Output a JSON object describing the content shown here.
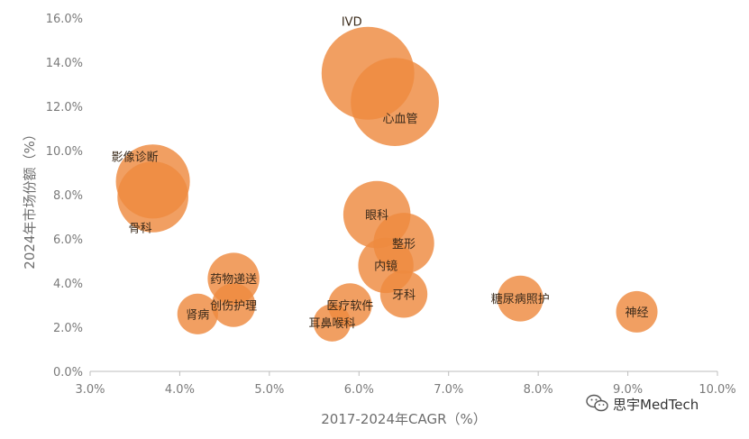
{
  "chart_data": {
    "type": "scatter",
    "subtype": "bubble",
    "title": "",
    "xlabel": "2017-2024年CAGR（%）",
    "ylabel": "2024年市场份额（%）",
    "xlim": [
      3.0,
      10.0
    ],
    "ylim": [
      0.0,
      16.0
    ],
    "x_ticks": [
      "3.0%",
      "4.0%",
      "5.0%",
      "6.0%",
      "7.0%",
      "8.0%",
      "9.0%",
      "10.0%"
    ],
    "y_ticks": [
      "0.0%",
      "2.0%",
      "4.0%",
      "6.0%",
      "8.0%",
      "10.0%",
      "12.0%",
      "14.0%",
      "16.0%"
    ],
    "grid": false,
    "legend": "none",
    "bubble_color": "#EE8A3F",
    "points": [
      {
        "label": "IVD",
        "x": 6.1,
        "y": 13.5,
        "size": 13.5
      },
      {
        "label": "心血管",
        "x": 6.4,
        "y": 12.2,
        "size": 12.2
      },
      {
        "label": "影像诊断",
        "x": 3.7,
        "y": 8.6,
        "size": 8.6
      },
      {
        "label": "骨科",
        "x": 3.7,
        "y": 7.9,
        "size": 7.9
      },
      {
        "label": "眼科",
        "x": 6.2,
        "y": 7.1,
        "size": 7.1
      },
      {
        "label": "整形",
        "x": 6.5,
        "y": 5.8,
        "size": 5.8
      },
      {
        "label": "内镜",
        "x": 6.3,
        "y": 4.8,
        "size": 4.8
      },
      {
        "label": "药物递送",
        "x": 4.6,
        "y": 4.2,
        "size": 4.2
      },
      {
        "label": "牙科",
        "x": 6.5,
        "y": 3.5,
        "size": 3.5
      },
      {
        "label": "糖尿病照护",
        "x": 7.8,
        "y": 3.3,
        "size": 3.3
      },
      {
        "label": "创伤护理",
        "x": 4.6,
        "y": 3.0,
        "size": 3.0
      },
      {
        "label": "医疗软件",
        "x": 5.9,
        "y": 3.0,
        "size": 3.0
      },
      {
        "label": "神经",
        "x": 9.1,
        "y": 2.7,
        "size": 2.7
      },
      {
        "label": "肾病",
        "x": 4.2,
        "y": 2.6,
        "size": 2.6
      },
      {
        "label": "耳鼻喉科",
        "x": 5.7,
        "y": 2.2,
        "size": 2.2
      }
    ]
  },
  "watermark": {
    "text": "思宇MedTech",
    "icon": "wechat-icon"
  }
}
